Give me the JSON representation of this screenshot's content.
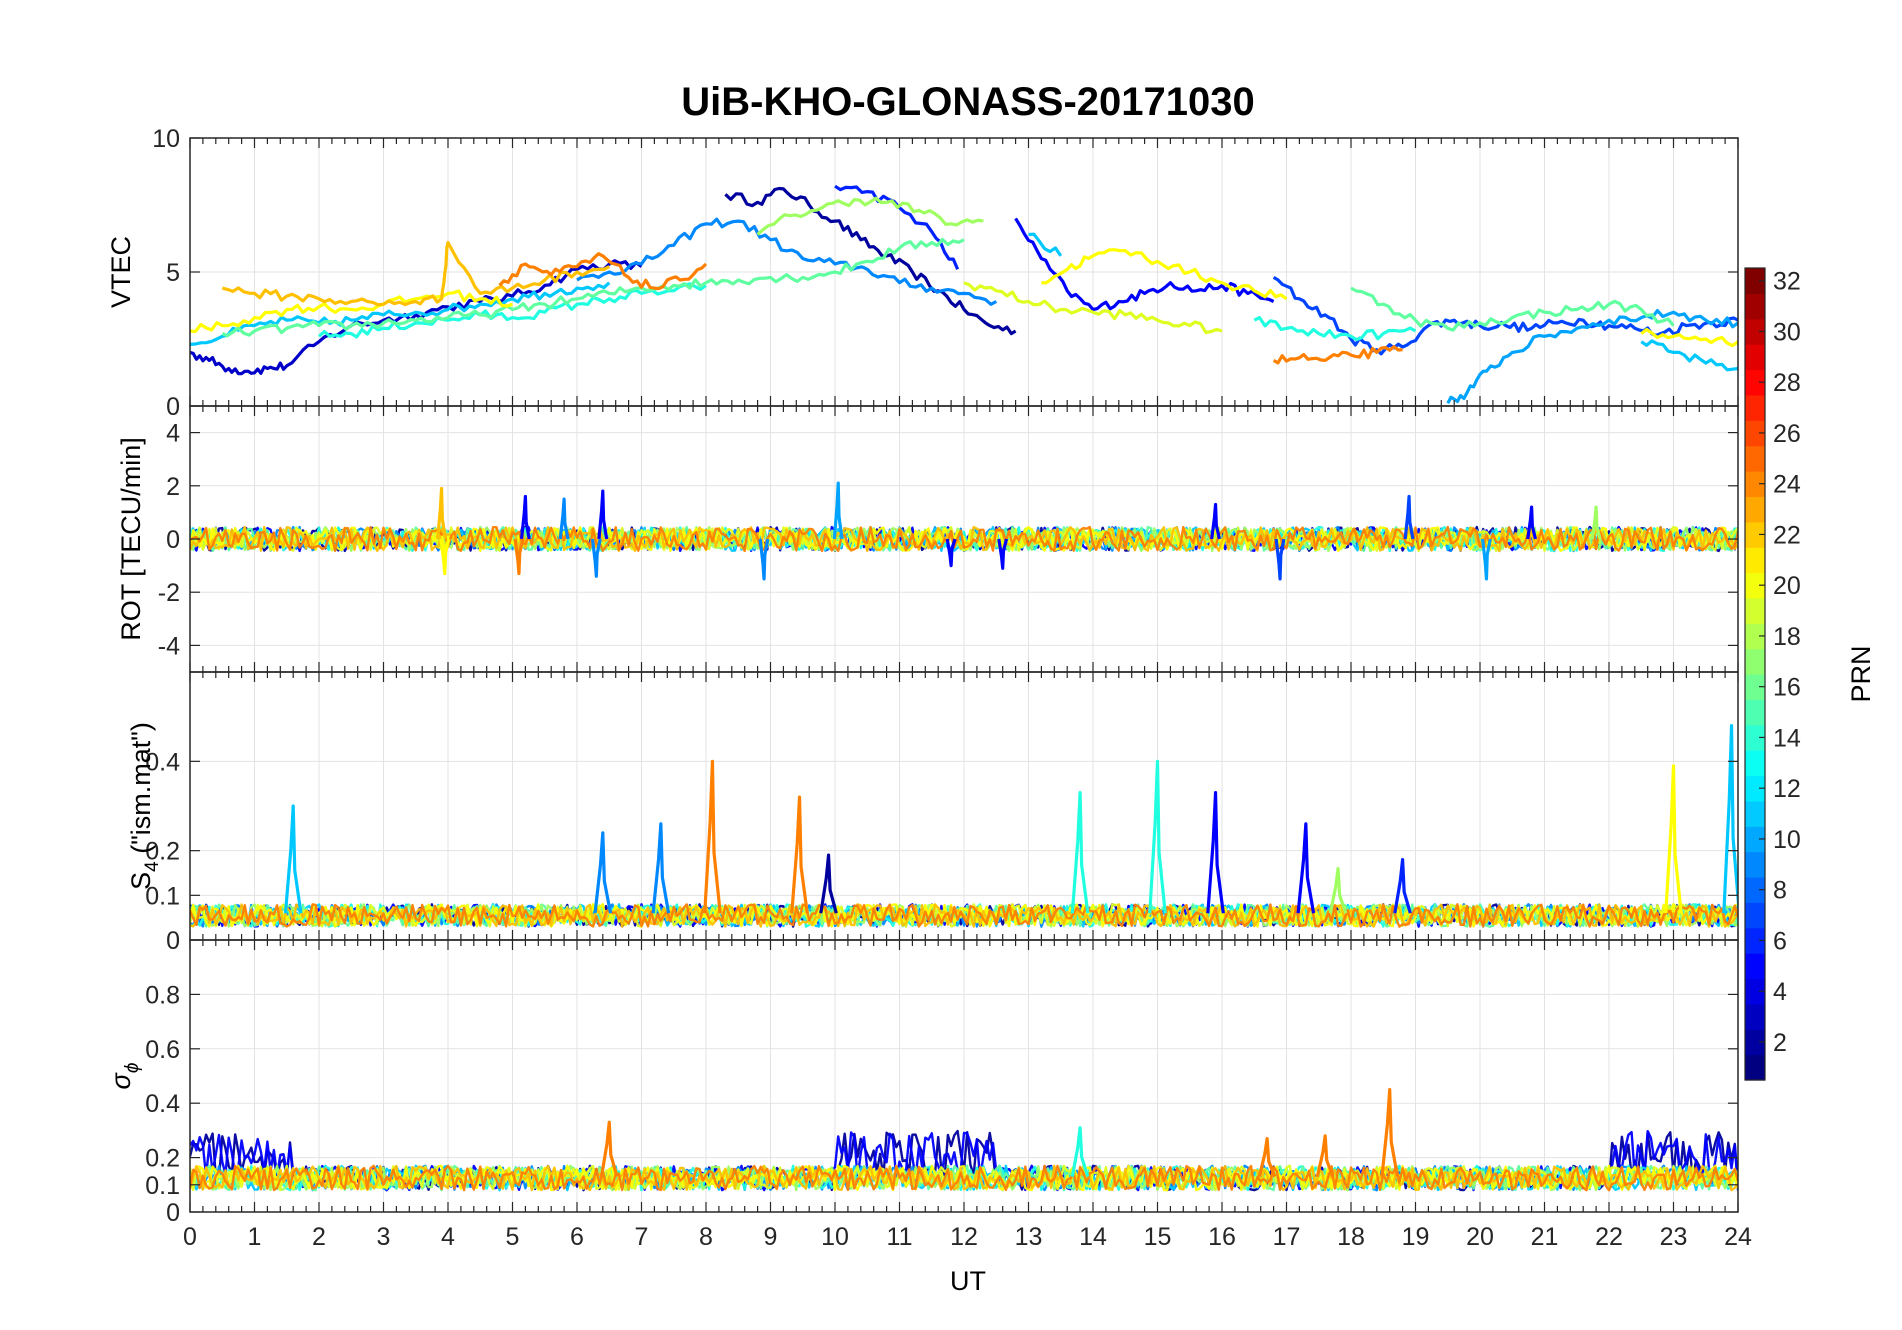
{
  "chart_data": {
    "type": "line",
    "title": "UiB-KHO-GLONASS-20171030",
    "xlabel": "UT",
    "xlim": [
      0,
      24
    ],
    "xticks": [
      0,
      1,
      2,
      3,
      4,
      5,
      6,
      7,
      8,
      9,
      10,
      11,
      12,
      13,
      14,
      15,
      16,
      17,
      18,
      19,
      20,
      21,
      22,
      23,
      24
    ],
    "grid": true,
    "colorbar": {
      "label": "PRN",
      "range": [
        1,
        32
      ],
      "ticks": [
        2,
        4,
        6,
        8,
        10,
        12,
        14,
        16,
        18,
        20,
        22,
        24,
        26,
        28,
        30,
        32
      ],
      "colormap": "jet"
    },
    "panels": [
      {
        "id": "vtec",
        "ylabel": "VTEC",
        "ylim": [
          0,
          10
        ],
        "yticks": [
          0,
          5,
          10
        ],
        "series": [
          {
            "prn": 1,
            "color": "#00009f",
            "x": [
              8.3,
              8.8,
              9.2,
              9.6,
              10,
              10.4,
              10.8,
              11.2,
              11.6,
              12,
              12.4,
              12.8
            ],
            "y": [
              7.9,
              7.6,
              8.1,
              7.5,
              6.9,
              6.2,
              5.6,
              5.0,
              4.3,
              3.6,
              3.0,
              2.8
            ]
          },
          {
            "prn": 2,
            "color": "#0000c8",
            "x": [
              0,
              0.3,
              0.6,
              0.9,
              1.2,
              1.5,
              2,
              2.5,
              3,
              3.5,
              4,
              4.5,
              5,
              5.5,
              6,
              6.5,
              7
            ],
            "y": [
              2.0,
              1.7,
              1.4,
              1.3,
              1.4,
              1.5,
              2.4,
              3.0,
              3.2,
              3.4,
              3.7,
              3.9,
              4.1,
              4.5,
              5.1,
              5.3,
              5.2
            ]
          },
          {
            "prn": 3,
            "color": "#0000ff",
            "x": [
              12.8,
              13.2,
              13.6,
              14,
              14.4,
              14.8,
              15.2,
              15.6,
              16,
              16.4,
              16.8
            ],
            "y": [
              7.0,
              5.5,
              4.3,
              3.6,
              3.9,
              4.2,
              4.6,
              4.3,
              4.5,
              4.2,
              3.9
            ]
          },
          {
            "prn": 4,
            "color": "#0022ff",
            "x": [
              10,
              10.5,
              11,
              11.5,
              11.9
            ],
            "y": [
              8.2,
              8.0,
              7.4,
              6.5,
              5.1
            ]
          },
          {
            "prn": 5,
            "color": "#0044ff",
            "x": [
              16.8,
              17.2,
              17.6,
              18,
              18.4,
              18.8,
              19.2,
              19.6,
              20,
              20.4,
              20.8,
              21.2,
              21.6,
              22,
              22.4,
              22.8,
              23.2,
              23.6,
              24
            ],
            "y": [
              4.8,
              4.0,
              3.4,
              2.5,
              2.1,
              2.2,
              3.0,
              3.2,
              3.0,
              3.0,
              2.9,
              3.1,
              3.2,
              3.0,
              2.9,
              2.7,
              3.0,
              3.1,
              3.2
            ]
          },
          {
            "prn": 7,
            "color": "#0088ff",
            "x": [
              6.0,
              6.5,
              7,
              7.5,
              8,
              8.5,
              9,
              9.5,
              10,
              10.5,
              11,
              11.5,
              12,
              12.5
            ],
            "y": [
              4.7,
              5.0,
              5.3,
              6.0,
              6.8,
              6.9,
              6.2,
              5.5,
              5.3,
              5.1,
              4.6,
              4.4,
              4.2,
              3.9
            ]
          },
          {
            "prn": 8,
            "color": "#00a4ff",
            "x": [
              19.5,
              19.8,
              20.1,
              20.5,
              21,
              21.5,
              22,
              22.5,
              23,
              23.5,
              24
            ],
            "y": [
              0.1,
              0.5,
              1.3,
              2.0,
              2.6,
              2.9,
              3.2,
              3.3,
              3.5,
              3.2,
              3.1
            ]
          },
          {
            "prn": 10,
            "color": "#00c8ff",
            "x": [
              0,
              0.5,
              1,
              1.5,
              2,
              2.5,
              3,
              3.5,
              4,
              4.5,
              5,
              5.5,
              6,
              6.5,
              13,
              13.5,
              22.5,
              23,
              23.5,
              24
            ],
            "y": [
              2.3,
              2.6,
              3.0,
              3.2,
              3.1,
              3.2,
              3.4,
              3.5,
              3.6,
              3.8,
              4.0,
              4.2,
              4.4,
              4.6,
              6.4,
              5.6,
              2.4,
              2.0,
              1.6,
              1.4
            ]
          },
          {
            "prn": 13,
            "color": "#20ffdf",
            "x": [
              2,
              2.5,
              3,
              3.5,
              4,
              4.5,
              5,
              5.5,
              6,
              6.5,
              7,
              7.5,
              8,
              16.5,
              17,
              17.5,
              18,
              18.5,
              19
            ],
            "y": [
              2.6,
              2.7,
              2.9,
              3.1,
              3.2,
              3.4,
              3.3,
              3.5,
              3.8,
              4.0,
              4.2,
              4.3,
              4.5,
              3.2,
              2.9,
              2.7,
              2.6,
              2.7,
              2.8
            ]
          },
          {
            "prn": 15,
            "color": "#60ff9f",
            "x": [
              0.5,
              1,
              1.5,
              2,
              2.5,
              3,
              3.5,
              4,
              4.5,
              5,
              5.5,
              6,
              6.5,
              7,
              7.5,
              8,
              8.5,
              9,
              9.5,
              10,
              10.5,
              11,
              11.5,
              12,
              18,
              18.5,
              19,
              19.5,
              20,
              20.5,
              21,
              21.5,
              22,
              22.5,
              23
            ],
            "y": [
              2.7,
              2.8,
              2.9,
              3.0,
              3.0,
              3.1,
              3.2,
              3.3,
              3.4,
              3.6,
              3.8,
              4.0,
              4.2,
              4.4,
              4.5,
              4.6,
              4.7,
              4.8,
              4.8,
              5.0,
              5.4,
              5.9,
              6.1,
              6.2,
              4.4,
              3.8,
              3.2,
              2.9,
              3.1,
              3.3,
              3.5,
              3.6,
              3.8,
              3.6,
              3.0
            ]
          },
          {
            "prn": 17,
            "color": "#9fff60",
            "x": [
              8.8,
              9.3,
              9.8,
              10.3,
              10.8,
              11.3,
              11.8,
              12.3
            ],
            "y": [
              6.4,
              7.1,
              7.4,
              7.7,
              7.6,
              7.3,
              6.8,
              6.9
            ]
          },
          {
            "prn": 19,
            "color": "#dfff20",
            "x": [
              12,
              12.5,
              13,
              13.5,
              14,
              14.5,
              15,
              15.5,
              16
            ],
            "y": [
              4.6,
              4.3,
              3.9,
              3.6,
              3.5,
              3.4,
              3.2,
              3.0,
              2.8
            ]
          },
          {
            "prn": 20,
            "color": "#ffff00",
            "x": [
              0,
              0.5,
              1,
              1.5,
              2,
              2.5,
              3,
              3.5,
              4,
              4.5,
              5,
              13.2,
              13.6,
              14,
              14.5,
              15,
              15.5,
              16,
              16.5,
              17,
              22.5,
              23,
              23.5,
              24
            ],
            "y": [
              2.8,
              3.0,
              3.3,
              3.6,
              3.7,
              3.6,
              3.8,
              4.0,
              4.2,
              4.0,
              3.8,
              4.6,
              5.1,
              5.6,
              5.8,
              5.4,
              5.0,
              4.6,
              4.3,
              4.0,
              2.7,
              2.6,
              2.5,
              2.4
            ]
          },
          {
            "prn": 22,
            "color": "#ffc000",
            "x": [
              0.5,
              1,
              1.5,
              2,
              2.5,
              3,
              3.5,
              3.9,
              4,
              4.5,
              5,
              5.5,
              6,
              6.5
            ],
            "y": [
              4.4,
              4.2,
              4.1,
              4.0,
              3.9,
              3.8,
              3.9,
              4.0,
              6.1,
              4.2,
              4.4,
              4.7,
              5.0,
              5.2
            ]
          },
          {
            "prn": 24,
            "color": "#ff8000",
            "x": [
              4.8,
              5.2,
              5.6,
              6,
              6.4,
              6.8,
              7.2,
              7.6,
              8,
              16.8,
              17.2,
              17.6,
              18,
              18.4,
              18.8
            ],
            "y": [
              4.5,
              5.3,
              4.9,
              5.2,
              5.6,
              4.8,
              4.4,
              4.7,
              5.3,
              1.7,
              1.8,
              1.7,
              1.9,
              2.0,
              2.1
            ]
          }
        ]
      },
      {
        "id": "rot",
        "ylabel": "ROT [TECU/min]",
        "ylim": [
          -5,
          5
        ],
        "yticks": [
          -4,
          -2,
          0,
          2,
          4
        ],
        "spikes": [
          {
            "prn": 22,
            "color": "#ffc000",
            "x": 3.9,
            "y": 1.9
          },
          {
            "prn": 20,
            "color": "#ffff00",
            "x": 3.95,
            "y": -1.3
          },
          {
            "prn": 3,
            "color": "#0000ff",
            "x": 5.2,
            "y": 1.6
          },
          {
            "prn": 24,
            "color": "#ff8000",
            "x": 5.1,
            "y": -1.3
          },
          {
            "prn": 7,
            "color": "#0088ff",
            "x": 5.8,
            "y": 1.5
          },
          {
            "prn": 3,
            "color": "#0000ff",
            "x": 6.4,
            "y": 1.8
          },
          {
            "prn": 7,
            "color": "#0088ff",
            "x": 6.3,
            "y": -1.4
          },
          {
            "prn": 7,
            "color": "#0088ff",
            "x": 8.9,
            "y": -1.5
          },
          {
            "prn": 8,
            "color": "#00a4ff",
            "x": 10.05,
            "y": 2.1
          },
          {
            "prn": 3,
            "color": "#0000ff",
            "x": 11.8,
            "y": -1.0
          },
          {
            "prn": 3,
            "color": "#0000ff",
            "x": 12.6,
            "y": -1.1
          },
          {
            "prn": 3,
            "color": "#0000ff",
            "x": 15.9,
            "y": 1.3
          },
          {
            "prn": 5,
            "color": "#0044ff",
            "x": 16.9,
            "y": -1.5
          },
          {
            "prn": 5,
            "color": "#0044ff",
            "x": 18.9,
            "y": 1.6
          },
          {
            "prn": 8,
            "color": "#00a4ff",
            "x": 20.1,
            "y": -1.5
          },
          {
            "prn": 3,
            "color": "#0000ff",
            "x": 20.8,
            "y": 1.2
          },
          {
            "prn": 17,
            "color": "#9fff60",
            "x": 21.8,
            "y": 1.2
          }
        ]
      },
      {
        "id": "s4",
        "ylabel": "S4 (\"ism.mat\")",
        "ylim": [
          0,
          0.6
        ],
        "yticks": [
          0,
          0.1,
          0.2,
          0.4
        ],
        "spikes": [
          {
            "prn": 10,
            "color": "#00c8ff",
            "x": 1.6,
            "y": 0.3
          },
          {
            "prn": 7,
            "color": "#0088ff",
            "x": 6.4,
            "y": 0.24
          },
          {
            "prn": 7,
            "color": "#0088ff",
            "x": 7.3,
            "y": 0.26
          },
          {
            "prn": 24,
            "color": "#ff8000",
            "x": 8.1,
            "y": 0.4
          },
          {
            "prn": 24,
            "color": "#ff8000",
            "x": 9.45,
            "y": 0.32
          },
          {
            "prn": 1,
            "color": "#00009f",
            "x": 9.9,
            "y": 0.19
          },
          {
            "prn": 13,
            "color": "#20ffdf",
            "x": 13.8,
            "y": 0.33
          },
          {
            "prn": 13,
            "color": "#20ffdf",
            "x": 15.0,
            "y": 0.4
          },
          {
            "prn": 3,
            "color": "#0000ff",
            "x": 15.9,
            "y": 0.33
          },
          {
            "prn": 3,
            "color": "#0000ff",
            "x": 17.3,
            "y": 0.26
          },
          {
            "prn": 17,
            "color": "#9fff60",
            "x": 17.8,
            "y": 0.16
          },
          {
            "prn": 4,
            "color": "#0022ff",
            "x": 18.8,
            "y": 0.18
          },
          {
            "prn": 20,
            "color": "#ffff00",
            "x": 23.0,
            "y": 0.39
          },
          {
            "prn": 10,
            "color": "#00c8ff",
            "x": 23.9,
            "y": 0.48
          }
        ]
      },
      {
        "id": "sigma_phi",
        "ylabel": "σ ϕ",
        "ylim": [
          0,
          1
        ],
        "yticks": [
          0,
          0.1,
          0.2,
          0.4,
          0.6,
          0.8
        ],
        "spikes": [
          {
            "prn": 24,
            "color": "#ff8000",
            "x": 6.5,
            "y": 0.33
          },
          {
            "prn": 24,
            "color": "#ff8000",
            "x": 16.7,
            "y": 0.27
          },
          {
            "prn": 24,
            "color": "#ff8000",
            "x": 17.6,
            "y": 0.28
          },
          {
            "prn": 24,
            "color": "#ff8000",
            "x": 18.6,
            "y": 0.45
          },
          {
            "prn": 13,
            "color": "#20ffdf",
            "x": 13.8,
            "y": 0.31
          }
        ]
      }
    ]
  }
}
